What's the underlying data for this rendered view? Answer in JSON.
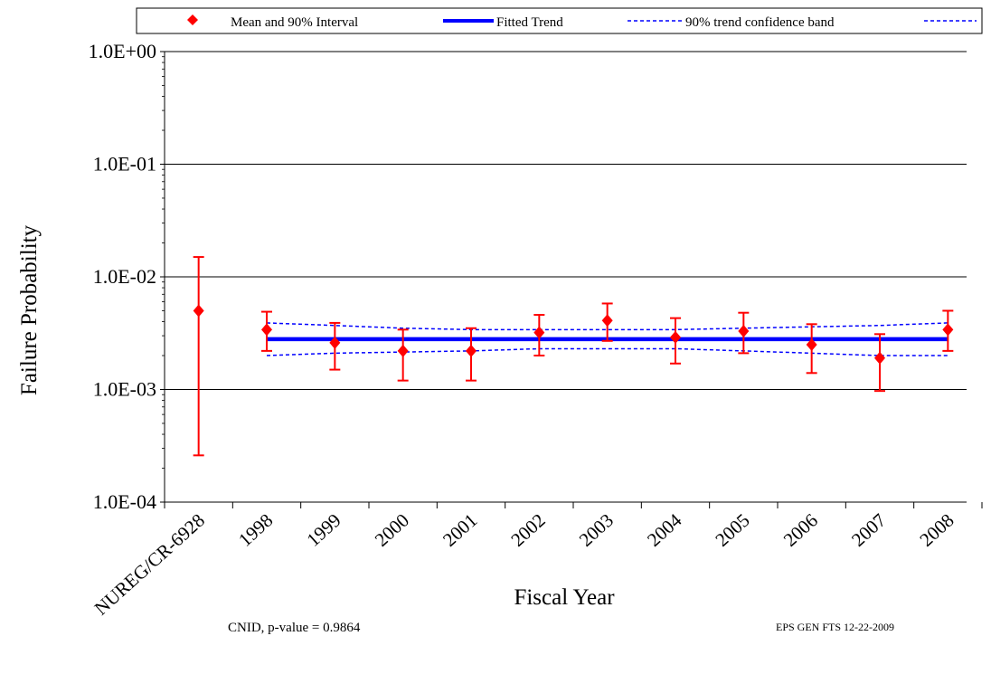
{
  "chart_data": {
    "type": "scatter",
    "xlabel": "Fiscal Year",
    "ylabel": "Failure Probability",
    "y_scale": "log",
    "ylim": [
      0.0001,
      1.0
    ],
    "y_ticks": [
      1.0,
      0.1,
      0.01,
      0.001,
      0.0001
    ],
    "y_tick_labels": [
      "1.0E+00",
      "1.0E-01",
      "1.0E-02",
      "1.0E-03",
      "1.0E-04"
    ],
    "categories": [
      "NUREG/CR-6928",
      "1998",
      "1999",
      "2000",
      "2001",
      "2002",
      "2003",
      "2004",
      "2005",
      "2006",
      "2007",
      "2008"
    ],
    "grid": true,
    "legend": {
      "placement": "top",
      "entries": [
        {
          "label": "Mean and 90% Interval",
          "symbol": "diamond",
          "color": "#ff0000"
        },
        {
          "label": "Fitted Trend",
          "symbol": "solid-line",
          "color": "#0000ff"
        },
        {
          "label": "90% trend confidence band",
          "symbol": "dashed-line",
          "color": "#0000ff"
        }
      ]
    },
    "series": [
      {
        "name": "Mean and 90% Interval",
        "color": "#ff0000",
        "mean": [
          0.005,
          0.0034,
          0.0026,
          0.0022,
          0.0022,
          0.0032,
          0.0041,
          0.0029,
          0.0033,
          0.0025,
          0.0019,
          0.0034
        ],
        "lower": [
          0.00026,
          0.0022,
          0.0015,
          0.0012,
          0.0012,
          0.002,
          0.0027,
          0.0017,
          0.0021,
          0.0014,
          0.00097,
          0.0022
        ],
        "upper": [
          0.015,
          0.0049,
          0.0039,
          0.0034,
          0.0035,
          0.0046,
          0.0058,
          0.0043,
          0.0048,
          0.0038,
          0.0031,
          0.005
        ]
      },
      {
        "name": "Fitted Trend",
        "color": "#0000ff",
        "x": [
          "1998",
          "2008"
        ],
        "values": [
          0.0028,
          0.0028
        ]
      },
      {
        "name": "90% trend confidence band",
        "color": "#0000ff",
        "x": [
          "1998",
          "1999",
          "2000",
          "2001",
          "2002",
          "2003",
          "2004",
          "2005",
          "2006",
          "2007",
          "2008"
        ],
        "upper": [
          0.0039,
          0.0037,
          0.0035,
          0.0034,
          0.0034,
          0.0034,
          0.0034,
          0.0035,
          0.0036,
          0.0037,
          0.0039
        ],
        "lower": [
          0.002,
          0.0021,
          0.00215,
          0.0022,
          0.0023,
          0.0023,
          0.0023,
          0.0022,
          0.0021,
          0.002,
          0.002
        ]
      }
    ],
    "annotations": {
      "note_left": "CNID, p-value = 0.9864",
      "note_right": "EPS GEN FTS 12-22-2009"
    }
  }
}
